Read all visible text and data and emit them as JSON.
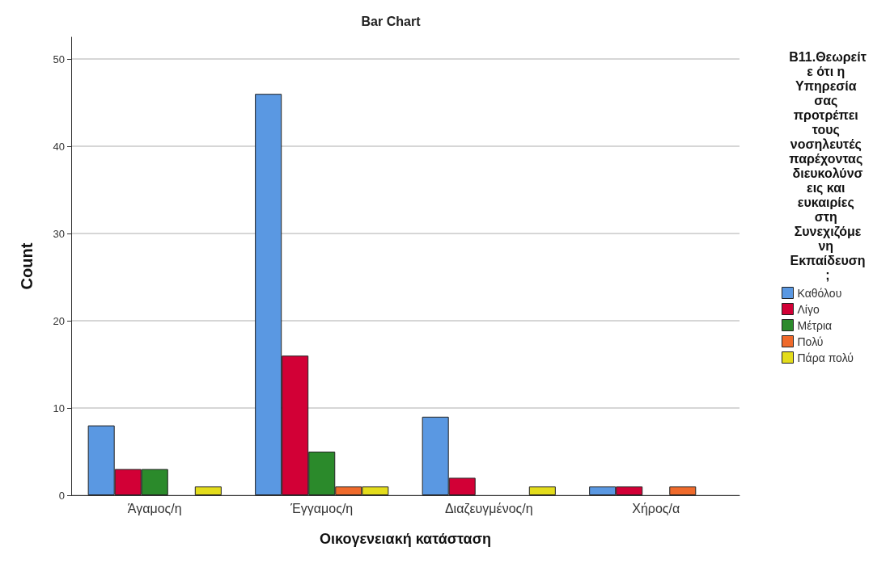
{
  "chart_data": {
    "type": "bar",
    "title": "Bar Chart",
    "xlabel": "Οικογενειακή κατάσταση",
    "ylabel": "Count",
    "legend_title": "Β11.Θεωρείτε ότι η Υπηρεσία σας προτρέπει τους νοσηλευτές παρέχοντας διευκολύνσεις και ευκαιρίες στη Συνεχιζόμενη Εκπαίδευση;",
    "categories": [
      "Άγαμος/η",
      "Έγγαμος/η",
      "Διαζευγμένος/η",
      "Χήρος/α"
    ],
    "series": [
      {
        "name": "Καθόλου",
        "color": "#5a98e2",
        "values": [
          8,
          46,
          9,
          1
        ]
      },
      {
        "name": "Λίγο",
        "color": "#d20036",
        "values": [
          3,
          16,
          2,
          1
        ]
      },
      {
        "name": "Μέτρια",
        "color": "#2b8a2b",
        "values": [
          3,
          5,
          null,
          null
        ]
      },
      {
        "name": "Πολύ",
        "color": "#ef6a2b",
        "values": [
          null,
          1,
          null,
          1
        ]
      },
      {
        "name": "Πάρα πολύ",
        "color": "#e3dc1c",
        "values": [
          1,
          1,
          1,
          null
        ]
      }
    ],
    "ylim": [
      0,
      52.5
    ],
    "yticks": [
      0,
      10,
      20,
      30,
      40,
      50
    ],
    "grid": "y",
    "legend": "right"
  }
}
